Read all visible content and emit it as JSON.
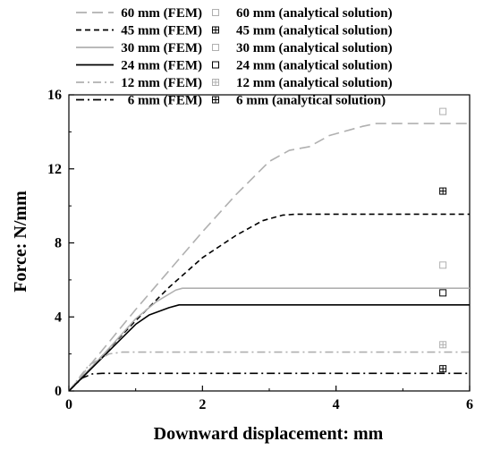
{
  "chart_data": {
    "type": "line",
    "xlabel": "Downward displacement: mm",
    "ylabel": "Force: N/mm",
    "xlim": [
      0,
      6
    ],
    "ylim": [
      0,
      16
    ],
    "xticks": [
      "0",
      "2",
      "4",
      "6"
    ],
    "yticks": [
      "0",
      "4",
      "8",
      "12",
      "16"
    ],
    "grid": false,
    "legend_position": "top",
    "series": [
      {
        "name": "60 mm (FEM)",
        "color": "#b0b0b0",
        "dash": "long-dash",
        "x": [
          0,
          0.5,
          1.0,
          1.5,
          2.0,
          2.5,
          3.0,
          3.3,
          3.6,
          3.9,
          4.2,
          4.4,
          4.6,
          6.0
        ],
        "y": [
          0,
          2.2,
          4.4,
          6.5,
          8.6,
          10.6,
          12.4,
          13.0,
          13.2,
          13.8,
          14.1,
          14.3,
          14.45,
          14.45
        ]
      },
      {
        "name": "60 mm (analytical solution)",
        "color": "#b0b0b0",
        "marker": "square",
        "x": [
          5.6
        ],
        "y": [
          15.1
        ]
      },
      {
        "name": "45 mm (FEM)",
        "color": "#000000",
        "dash": "dash",
        "x": [
          0,
          0.5,
          1.0,
          1.5,
          2.0,
          2.5,
          2.9,
          3.2,
          3.4,
          6.0
        ],
        "y": [
          0,
          1.9,
          3.8,
          5.6,
          7.2,
          8.4,
          9.2,
          9.5,
          9.55,
          9.55
        ]
      },
      {
        "name": "45 mm (analytical solution)",
        "color": "#000000",
        "marker": "square-plus",
        "x": [
          5.6
        ],
        "y": [
          10.8
        ]
      },
      {
        "name": "30 mm (FEM)",
        "color": "#b0b0b0",
        "dash": "solid",
        "x": [
          0,
          0.5,
          1.0,
          1.3,
          1.6,
          1.7,
          6.0
        ],
        "y": [
          0,
          1.9,
          3.9,
          4.8,
          5.45,
          5.55,
          5.55
        ]
      },
      {
        "name": "30 mm (analytical solution)",
        "color": "#b0b0b0",
        "marker": "square",
        "x": [
          5.6
        ],
        "y": [
          6.8
        ]
      },
      {
        "name": "24 mm (FEM)",
        "color": "#000000",
        "dash": "solid",
        "x": [
          0,
          0.5,
          1.0,
          1.2,
          1.5,
          1.65,
          6.0
        ],
        "y": [
          0,
          1.8,
          3.6,
          4.1,
          4.5,
          4.65,
          4.65
        ]
      },
      {
        "name": "24 mm (analytical solution)",
        "color": "#000000",
        "marker": "square",
        "x": [
          5.6
        ],
        "y": [
          5.3
        ]
      },
      {
        "name": "12 mm (FEM)",
        "color": "#b0b0b0",
        "dash": "dash-dot",
        "x": [
          0,
          0.3,
          0.6,
          0.8,
          6.0
        ],
        "y": [
          0,
          1.4,
          2.0,
          2.1,
          2.1
        ]
      },
      {
        "name": "12 mm (analytical solution)",
        "color": "#b0b0b0",
        "marker": "square-plus",
        "x": [
          5.6
        ],
        "y": [
          2.5
        ]
      },
      {
        "name": "6 mm (FEM)",
        "color": "#000000",
        "dash": "dash-dot",
        "x": [
          0,
          0.2,
          0.35,
          0.5,
          6.0
        ],
        "y": [
          0,
          0.7,
          0.92,
          0.95,
          0.95
        ]
      },
      {
        "name": "6 mm (analytical solution)",
        "color": "#000000",
        "marker": "square-plus",
        "x": [
          5.6
        ],
        "y": [
          1.2
        ]
      }
    ]
  }
}
